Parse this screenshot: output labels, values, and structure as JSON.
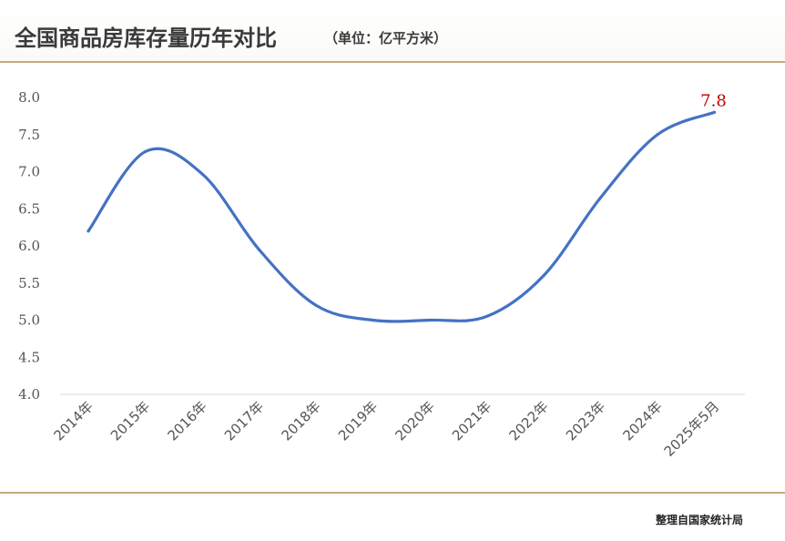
{
  "header": {
    "title": "全国商品房库存量历年对比",
    "subtitle": "（单位：亿平方米）"
  },
  "footer": {
    "source": "整理自国家统计局"
  },
  "colors": {
    "line": "#4472c4",
    "accent_rule": "#c8a97a",
    "data_label": "#c00000"
  },
  "chart_data": {
    "type": "line",
    "title": "全国商品房库存量历年对比",
    "unit": "（单位：亿平方米）",
    "categories": [
      "2014年",
      "2015年",
      "2016年",
      "2017年",
      "2018年",
      "2019年",
      "2020年",
      "2021年",
      "2022年",
      "2023年",
      "2024年",
      "2025年5月"
    ],
    "values": [
      6.2,
      7.27,
      6.97,
      5.95,
      5.2,
      5.0,
      5.0,
      5.05,
      5.6,
      6.65,
      7.5,
      7.8
    ],
    "y_ticks": [
      "4.0",
      "4.5",
      "5.0",
      "5.5",
      "6.0",
      "6.5",
      "7.0",
      "7.5",
      "8.0"
    ],
    "ylim": [
      4.0,
      8.0
    ],
    "grid": false,
    "smooth": true,
    "data_labels": [
      {
        "index": 11,
        "text": "7.8"
      }
    ]
  }
}
